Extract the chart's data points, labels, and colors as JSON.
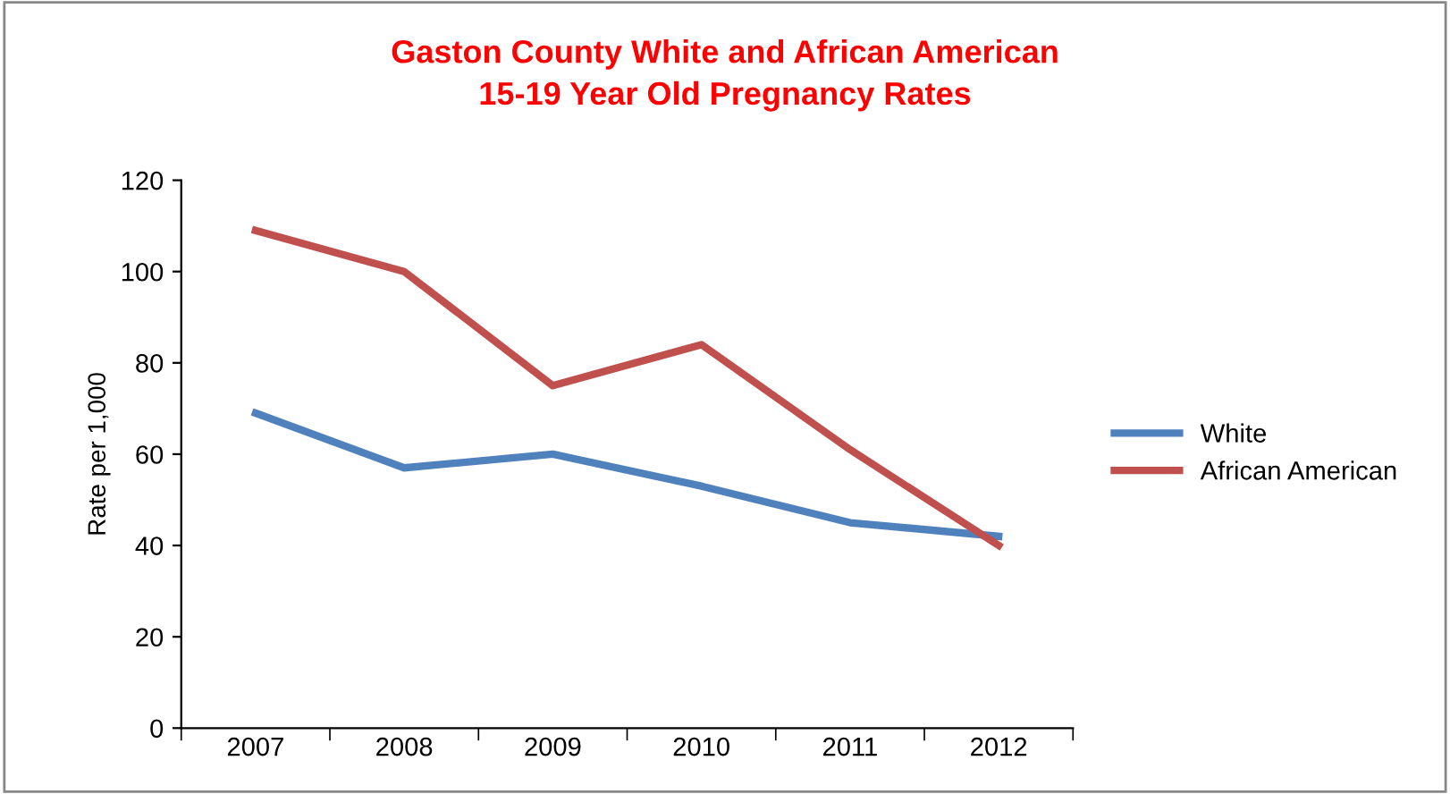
{
  "chart_data": {
    "type": "line",
    "title": "Gaston County White and African American\n15-19 Year Old Pregnancy Rates",
    "ylabel": "Rate per 1,000",
    "categories": [
      "2007",
      "2008",
      "2009",
      "2010",
      "2011",
      "2012"
    ],
    "series": [
      {
        "name": "White",
        "color": "#4f81bd",
        "values": [
          69,
          57,
          60,
          53,
          45,
          42
        ]
      },
      {
        "name": "African American",
        "color": "#c0504d",
        "values": [
          109,
          100,
          75,
          84,
          61,
          40
        ]
      }
    ],
    "ylim": [
      0,
      120
    ],
    "yticks": [
      0,
      20,
      40,
      60,
      80,
      100,
      120
    ],
    "grid": false,
    "legend": "right",
    "marker": "none",
    "line_style": "solid"
  }
}
